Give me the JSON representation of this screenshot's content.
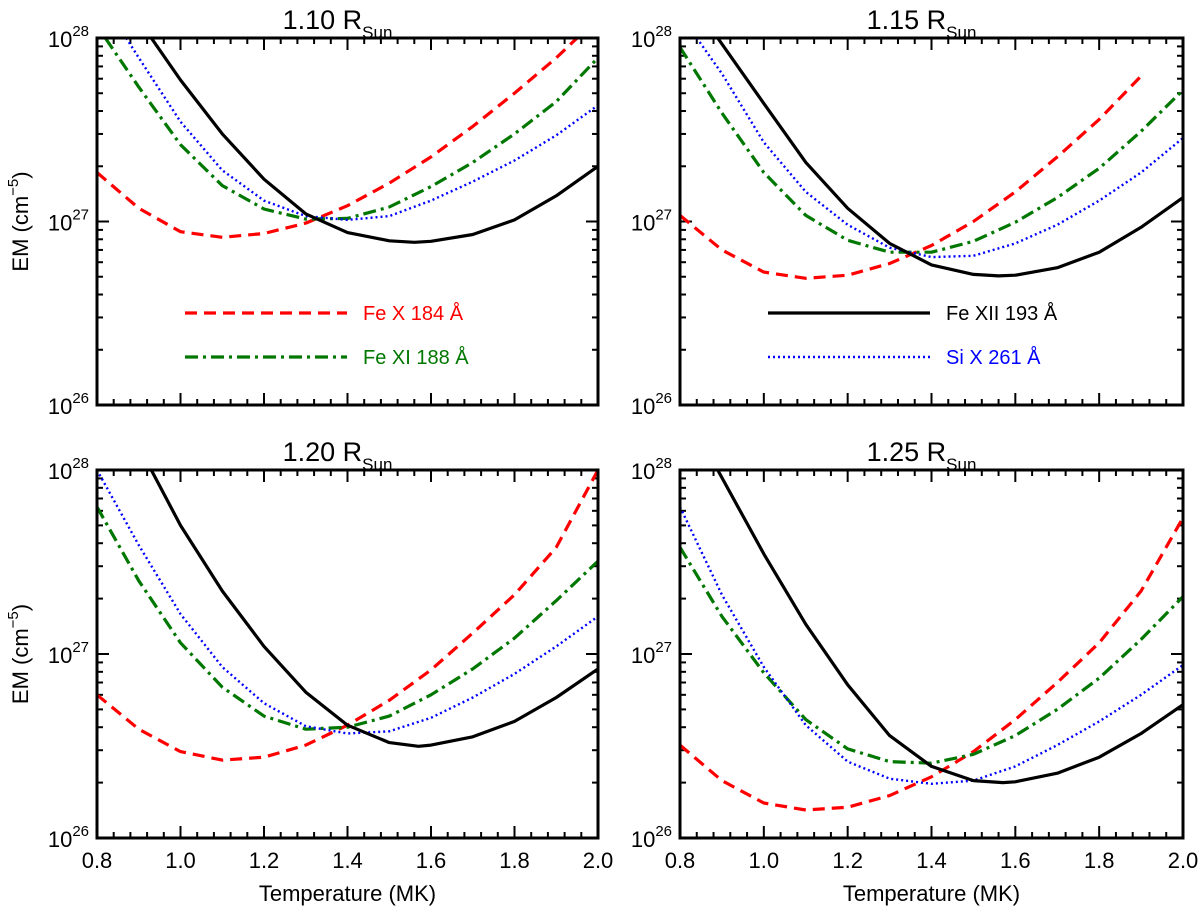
{
  "chart_data": [
    {
      "type": "line",
      "title_main": "1.10 R",
      "title_sub": "Sun",
      "xlabel": "",
      "ylabel_main": "EM (cm",
      "ylabel_sup": "−5",
      "ylabel_close": ")",
      "xlim": [
        0.8,
        2.0
      ],
      "ylim": [
        1e+26,
        1e+28
      ],
      "y_scale": "log",
      "x_tick_labels": [
        "",
        "",
        "",
        "",
        "",
        "",
        ""
      ],
      "y_tick_labels": [
        {
          "base": "10",
          "exp": "28"
        },
        {
          "base": "10",
          "exp": "27"
        },
        {
          "base": "10",
          "exp": "26"
        }
      ],
      "legend": [
        {
          "label": "Fe X 184 Å",
          "color": "#ff0000",
          "style": "dashed"
        },
        {
          "label": "Fe XI 188 Å",
          "color": "#007700",
          "style": "dashdot"
        }
      ],
      "series": [
        {
          "name": "Fe X 184 Å",
          "color": "#ff0000",
          "style": "dashed",
          "x": [
            0.8,
            0.9,
            1.0,
            1.1,
            1.2,
            1.3,
            1.4,
            1.5,
            1.6,
            1.7,
            1.8,
            1.9,
            1.95
          ],
          "y": [
            1.85e+27,
            1.18e+27,
            8.8e+26,
            8.2e+26,
            8.6e+26,
            9.8e+26,
            1.22e+27,
            1.62e+27,
            2.25e+27,
            3.3e+27,
            5e+27,
            7.8e+27,
            1e+28
          ]
        },
        {
          "name": "Fe XI 188 Å",
          "color": "#007700",
          "style": "dashdot",
          "x": [
            0.82,
            0.9,
            1.0,
            1.1,
            1.2,
            1.3,
            1.4,
            1.5,
            1.6,
            1.7,
            1.8,
            1.9,
            2.0
          ],
          "y": [
            1e+28,
            5.4e+27,
            2.62e+27,
            1.57e+27,
            1.17e+27,
            1.03e+27,
            1.04e+27,
            1.2e+27,
            1.55e+27,
            2.1e+27,
            3e+27,
            4.5e+27,
            7.8e+27
          ]
        },
        {
          "name": "Si X 261 Å",
          "color": "#0000ff",
          "style": "dotted",
          "x": [
            0.87,
            0.9,
            1.0,
            1.1,
            1.2,
            1.3,
            1.4,
            1.5,
            1.6,
            1.7,
            1.8,
            1.9,
            2.0
          ],
          "y": [
            1e+28,
            7.8e+27,
            3.5e+27,
            1.9e+27,
            1.3e+27,
            1.07e+27,
            1.02e+27,
            1.07e+27,
            1.3e+27,
            1.65e+27,
            2.15e+27,
            2.95e+27,
            4.3e+27
          ]
        },
        {
          "name": "Fe XII 193 Å",
          "color": "#000000",
          "style": "solid",
          "x": [
            0.93,
            1.0,
            1.1,
            1.2,
            1.3,
            1.4,
            1.5,
            1.56,
            1.6,
            1.7,
            1.8,
            1.9,
            2.0
          ],
          "y": [
            1e+28,
            5.9e+27,
            3e+27,
            1.7e+27,
            1.1e+27,
            8.7e+26,
            7.85e+26,
            7.7e+26,
            7.8e+26,
            8.5e+26,
            1.02e+27,
            1.38e+27,
            2e+27
          ]
        }
      ]
    },
    {
      "type": "line",
      "title_main": "1.15 R",
      "title_sub": "Sun",
      "xlabel": "",
      "ylabel_main": "",
      "ylabel_sup": "",
      "ylabel_close": "",
      "xlim": [
        0.8,
        2.0
      ],
      "ylim": [
        1e+26,
        1e+28
      ],
      "y_scale": "log",
      "x_tick_labels": [
        "",
        "",
        "",
        "",
        "",
        "",
        ""
      ],
      "y_tick_labels": [
        {
          "base": "10",
          "exp": "28"
        },
        {
          "base": "10",
          "exp": "27"
        },
        {
          "base": "10",
          "exp": "26"
        }
      ],
      "legend": [
        {
          "label": "Fe XII 193 Å",
          "color": "#000000",
          "style": "solid"
        },
        {
          "label": "Si X 261 Å",
          "color": "#0000ff",
          "style": "dotted"
        }
      ],
      "series": [
        {
          "name": "Fe X 184 Å",
          "color": "#ff0000",
          "style": "dashed",
          "x": [
            0.8,
            0.9,
            1.0,
            1.1,
            1.2,
            1.3,
            1.4,
            1.5,
            1.6,
            1.7,
            1.8,
            1.9
          ],
          "y": [
            1.08e+27,
            7e+26,
            5.3e+26,
            4.9e+26,
            5.1e+26,
            5.9e+26,
            7.4e+26,
            1e+27,
            1.45e+27,
            2.25e+27,
            3.6e+27,
            6.2e+27
          ]
        },
        {
          "name": "Fe XI 188 Å",
          "color": "#007700",
          "style": "dashdot",
          "x": [
            0.8,
            0.9,
            1.0,
            1.1,
            1.2,
            1.3,
            1.4,
            1.5,
            1.6,
            1.7,
            1.8,
            1.9,
            2.0
          ],
          "y": [
            8.9e+27,
            3.9e+27,
            1.85e+27,
            1.08e+27,
            7.9e+26,
            6.8e+26,
            6.8e+26,
            7.8e+26,
            9.9e+26,
            1.35e+27,
            1.95e+27,
            3.1e+27,
            5.2e+27
          ]
        },
        {
          "name": "Si X 261 Å",
          "color": "#0000ff",
          "style": "dotted",
          "x": [
            0.84,
            0.9,
            1.0,
            1.1,
            1.2,
            1.3,
            1.4,
            1.5,
            1.6,
            1.7,
            1.8,
            1.9,
            2.0
          ],
          "y": [
            1e+28,
            6.4e+27,
            2.7e+27,
            1.45e+27,
            9.6e+26,
            7.2e+26,
            6.4e+26,
            6.5e+26,
            7.6e+26,
            9.6e+26,
            1.3e+27,
            1.85e+27,
            2.85e+27
          ]
        },
        {
          "name": "Fe XII 193 Å",
          "color": "#000000",
          "style": "solid",
          "x": [
            0.89,
            1.0,
            1.1,
            1.2,
            1.3,
            1.4,
            1.5,
            1.56,
            1.6,
            1.7,
            1.8,
            1.9,
            2.0
          ],
          "y": [
            1e+28,
            4.4e+27,
            2.1e+27,
            1.18e+27,
            7.6e+26,
            5.8e+26,
            5.15e+26,
            5.05e+26,
            5.1e+26,
            5.6e+26,
            6.8e+26,
            9.3e+26,
            1.35e+27
          ]
        }
      ]
    },
    {
      "type": "line",
      "title_main": "1.20 R",
      "title_sub": "Sun",
      "xlabel": "Temperature (MK)",
      "ylabel_main": "EM (cm",
      "ylabel_sup": "−5",
      "ylabel_close": ")",
      "xlim": [
        0.8,
        2.0
      ],
      "ylim": [
        1e+26,
        1e+28
      ],
      "y_scale": "log",
      "x_tick_labels": [
        "0.8",
        "1.0",
        "1.2",
        "1.4",
        "1.6",
        "1.8",
        "2.0"
      ],
      "y_tick_labels": [
        {
          "base": "10",
          "exp": "28"
        },
        {
          "base": "10",
          "exp": "27"
        },
        {
          "base": "10",
          "exp": "26"
        }
      ],
      "legend": [],
      "series": [
        {
          "name": "Fe X 184 Å",
          "color": "#ff0000",
          "style": "dashed",
          "x": [
            0.8,
            0.9,
            1.0,
            1.1,
            1.2,
            1.3,
            1.4,
            1.5,
            1.6,
            1.7,
            1.8,
            1.9,
            2.0
          ],
          "y": [
            6e+26,
            3.9e+26,
            2.95e+26,
            2.65e+26,
            2.75e+26,
            3.2e+26,
            4.1e+26,
            5.6e+26,
            8.2e+26,
            1.3e+27,
            2.1e+27,
            3.8e+27,
            1e+28
          ]
        },
        {
          "name": "Fe XI 188 Å",
          "color": "#007700",
          "style": "dashdot",
          "x": [
            0.8,
            0.9,
            1.0,
            1.1,
            1.2,
            1.3,
            1.4,
            1.5,
            1.6,
            1.7,
            1.8,
            1.9,
            2.0
          ],
          "y": [
            6.3e+27,
            2.5e+27,
            1.15e+27,
            6.6e+26,
            4.6e+26,
            3.9e+26,
            4e+26,
            4.6e+26,
            6e+26,
            8.3e+26,
            1.22e+27,
            1.95e+27,
            3.2e+27
          ]
        },
        {
          "name": "Si X 261 Å",
          "color": "#0000ff",
          "style": "dotted",
          "x": [
            0.8,
            0.9,
            1.0,
            1.1,
            1.2,
            1.3,
            1.4,
            1.5,
            1.6,
            1.7,
            1.8,
            1.9,
            2.0
          ],
          "y": [
            1e+28,
            3.9e+27,
            1.65e+27,
            8.5e+26,
            5.4e+26,
            4.05e+26,
            3.7e+26,
            3.8e+26,
            4.5e+26,
            5.8e+26,
            7.8e+26,
            1.1e+27,
            1.6e+27
          ]
        },
        {
          "name": "Fe XII 193 Å",
          "color": "#000000",
          "style": "solid",
          "x": [
            0.93,
            1.0,
            1.1,
            1.2,
            1.3,
            1.4,
            1.5,
            1.57,
            1.6,
            1.7,
            1.8,
            1.9,
            2.0
          ],
          "y": [
            1e+28,
            5e+27,
            2.2e+27,
            1.1e+27,
            6.2e+26,
            4.1e+26,
            3.3e+26,
            3.15e+26,
            3.2e+26,
            3.55e+26,
            4.3e+26,
            5.8e+26,
            8.3e+26
          ]
        }
      ]
    },
    {
      "type": "line",
      "title_main": "1.25 R",
      "title_sub": "Sun",
      "xlabel": "Temperature (MK)",
      "ylabel_main": "",
      "ylabel_sup": "",
      "ylabel_close": "",
      "xlim": [
        0.8,
        2.0
      ],
      "ylim": [
        1e+26,
        1e+28
      ],
      "y_scale": "log",
      "x_tick_labels": [
        "0.8",
        "1.0",
        "1.2",
        "1.4",
        "1.6",
        "1.8",
        "2.0"
      ],
      "y_tick_labels": [
        {
          "base": "10",
          "exp": "28"
        },
        {
          "base": "10",
          "exp": "27"
        },
        {
          "base": "10",
          "exp": "26"
        }
      ],
      "legend": [],
      "series": [
        {
          "name": "Fe X 184 Å",
          "color": "#ff0000",
          "style": "dashed",
          "x": [
            0.8,
            0.9,
            1.0,
            1.1,
            1.2,
            1.3,
            1.4,
            1.5,
            1.6,
            1.7,
            1.8,
            1.9,
            2.0
          ],
          "y": [
            3.2e+26,
            2.05e+26,
            1.55e+26,
            1.42e+26,
            1.47e+26,
            1.7e+26,
            2.15e+26,
            2.95e+26,
            4.4e+26,
            7e+26,
            1.15e+27,
            2.2e+27,
            5.5e+27
          ]
        },
        {
          "name": "Fe XI 188 Å",
          "color": "#007700",
          "style": "dashdot",
          "x": [
            0.8,
            0.9,
            1.0,
            1.1,
            1.2,
            1.3,
            1.4,
            1.5,
            1.6,
            1.7,
            1.8,
            1.9,
            2.0
          ],
          "y": [
            3.8e+27,
            1.6e+27,
            7.9e+26,
            4.4e+26,
            3.05e+26,
            2.6e+26,
            2.55e+26,
            2.85e+26,
            3.6e+26,
            5e+26,
            7.4e+26,
            1.2e+27,
            2.05e+27
          ]
        },
        {
          "name": "Si X 261 Å",
          "color": "#0000ff",
          "style": "dotted",
          "x": [
            0.8,
            0.9,
            1.0,
            1.1,
            1.2,
            1.3,
            1.4,
            1.5,
            1.6,
            1.7,
            1.8,
            1.9,
            2.0
          ],
          "y": [
            6.3e+27,
            2.1e+27,
            8.5e+26,
            4.1e+26,
            2.6e+26,
            2.1e+26,
            1.97e+26,
            2.05e+26,
            2.45e+26,
            3.2e+26,
            4.3e+26,
            6e+26,
            8.7e+26
          ]
        },
        {
          "name": "Fe XII 193 Å",
          "color": "#000000",
          "style": "solid",
          "x": [
            0.89,
            1.0,
            1.1,
            1.2,
            1.3,
            1.4,
            1.5,
            1.57,
            1.6,
            1.7,
            1.8,
            1.9,
            2.0
          ],
          "y": [
            1e+28,
            3.5e+27,
            1.45e+27,
            6.8e+26,
            3.6e+26,
            2.45e+26,
            2.05e+26,
            2e+26,
            2.02e+26,
            2.25e+26,
            2.75e+26,
            3.7e+26,
            5.3e+26
          ]
        }
      ]
    }
  ]
}
